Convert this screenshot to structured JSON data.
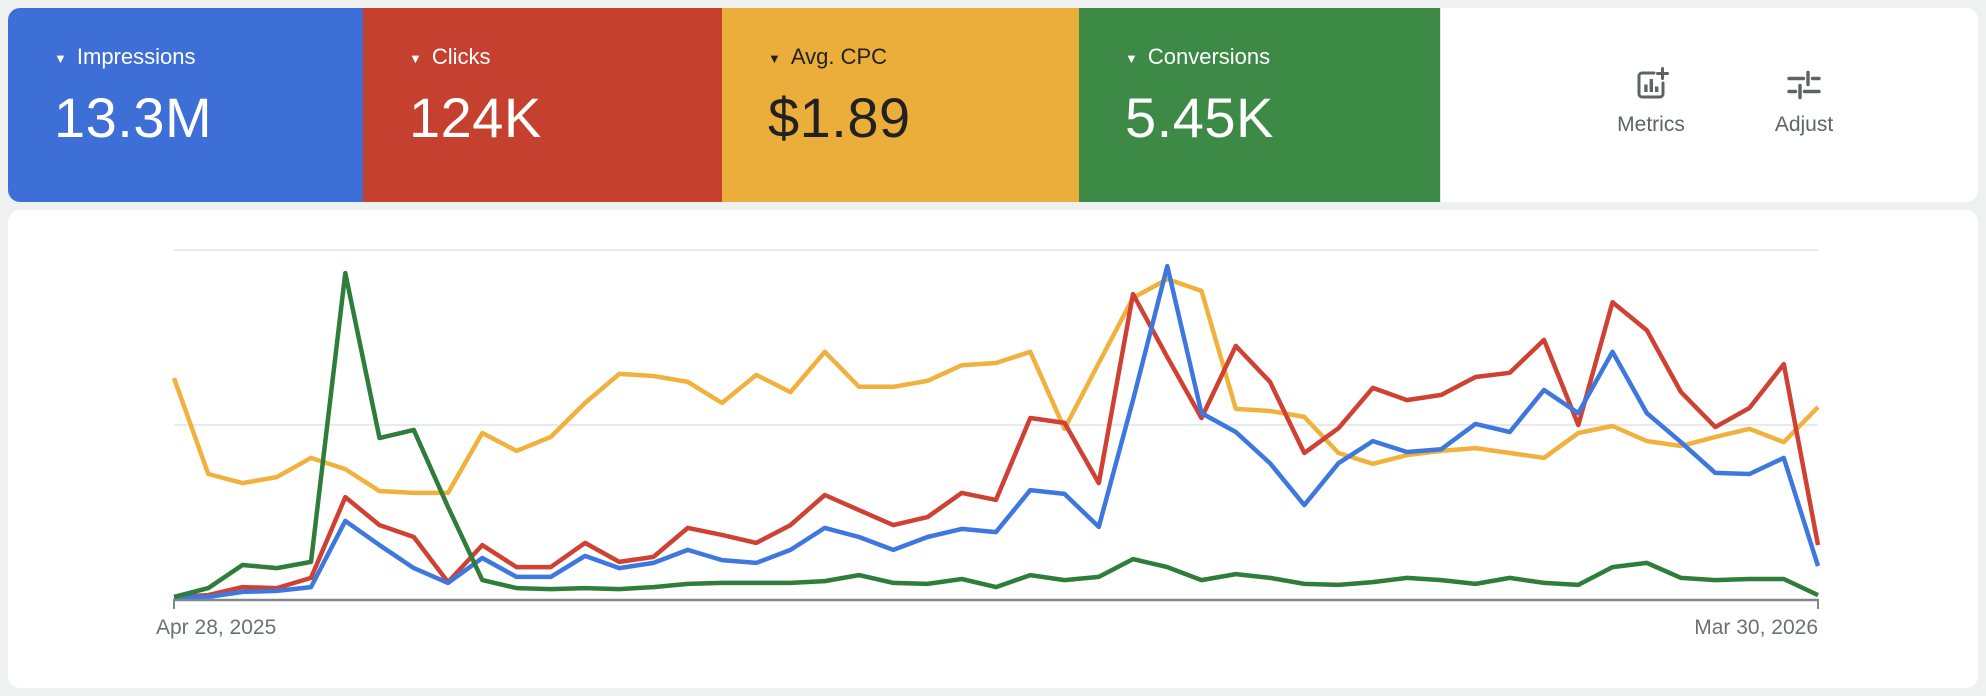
{
  "header": {
    "cards": [
      {
        "label": "Impressions",
        "value": "13.3M",
        "bg": "#3D6FD7",
        "fg": "#FFFFFF"
      },
      {
        "label": "Clicks",
        "value": "124K",
        "bg": "#C5402F",
        "fg": "#FFFFFF"
      },
      {
        "label": "Avg. CPC",
        "value": "$1.89",
        "bg": "#EBAE3B",
        "fg": "#212121"
      },
      {
        "label": "Conversions",
        "value": "5.45K",
        "bg": "#3D8946",
        "fg": "#FFFFFF"
      }
    ],
    "actions": [
      {
        "label": "Metrics",
        "icon": "add-chart-icon"
      },
      {
        "label": "Adjust",
        "icon": "tune-icon"
      }
    ],
    "menu_icon": "kebab-menu-icon",
    "icon_color": "#5F6368"
  },
  "chart_data": {
    "type": "line",
    "x_unit": "week",
    "x_start_label": "Apr 28, 2025",
    "x_end_label": "Mar 30, 2026",
    "n_points": 49,
    "y_axis": {
      "min": 0,
      "max": 100,
      "unit": "percent-of-plot-height",
      "gridlines": [
        0,
        50,
        100
      ],
      "labels_visible": false
    },
    "grid_color": "#E8EAED",
    "axis_color": "#80868B",
    "legend_position": "header-cards",
    "series": [
      {
        "key": "avg_cpc",
        "name": "Avg. CPC",
        "color": "#F0B23D",
        "values": [
          63.4,
          36,
          33.4,
          35.1,
          40.6,
          37.4,
          31.1,
          30.6,
          30.6,
          47.7,
          42.6,
          46.6,
          56.3,
          64.6,
          64,
          62.3,
          56.3,
          64.3,
          59.4,
          70.9,
          60.9,
          60.9,
          62.6,
          67.1,
          67.7,
          70.9,
          48.9,
          67.7,
          86.3,
          91.7,
          88.3,
          54.6,
          54,
          52.3,
          42,
          38.9,
          41.4,
          42.6,
          43.4,
          42,
          40.6,
          47.7,
          49.7,
          45.4,
          44,
          46.6,
          48.9,
          45.1,
          55.1
        ]
      },
      {
        "key": "clicks",
        "name": "Clicks",
        "color": "#CF4233",
        "values": [
          0.9,
          1.4,
          3.7,
          3.4,
          6.3,
          29.4,
          21.4,
          18,
          5.1,
          15.7,
          9.4,
          9.4,
          16.3,
          10.9,
          12.3,
          20.6,
          18.6,
          16.3,
          21.4,
          30,
          25.7,
          21.4,
          23.7,
          30.6,
          28.6,
          52,
          50.6,
          33.4,
          87.4,
          69.4,
          52,
          72.6,
          62.3,
          42,
          49.1,
          60.6,
          57.1,
          58.6,
          63.7,
          64.9,
          74.3,
          50,
          85.1,
          77.1,
          59.4,
          49.4,
          54.9,
          67.4,
          15.7
        ]
      },
      {
        "key": "impressions",
        "name": "Impressions",
        "color": "#3E78DF",
        "values": [
          0.9,
          0.9,
          2.3,
          2.6,
          3.7,
          22.6,
          15.7,
          9.1,
          4.9,
          12,
          6.6,
          6.6,
          12.6,
          9.1,
          10.6,
          14.3,
          11.4,
          10.6,
          14.3,
          20.6,
          18,
          14.3,
          18,
          20.3,
          19.4,
          31.4,
          30.3,
          20.9,
          57.1,
          95.4,
          53.4,
          48,
          39.1,
          27.1,
          39.1,
          45.4,
          42.3,
          43.1,
          50.3,
          48,
          60,
          53.4,
          70.9,
          53.4,
          45.1,
          36.3,
          36,
          40.6,
          9.7
        ]
      },
      {
        "key": "conversions",
        "name": "Conversions",
        "color": "#2F7D3B",
        "values": [
          0.9,
          3.4,
          10,
          9.1,
          10.9,
          93.4,
          46.3,
          48.6,
          26.6,
          5.7,
          3.4,
          3.1,
          3.4,
          3.1,
          3.7,
          4.6,
          4.9,
          4.9,
          4.9,
          5.4,
          7.1,
          4.9,
          4.6,
          6,
          3.7,
          7.1,
          5.7,
          6.6,
          11.7,
          9.4,
          5.7,
          7.4,
          6.3,
          4.6,
          4.3,
          5.1,
          6.3,
          5.7,
          4.6,
          6.3,
          4.9,
          4.3,
          9.4,
          10.6,
          6.3,
          5.7,
          6,
          6,
          1.4
        ]
      }
    ]
  }
}
